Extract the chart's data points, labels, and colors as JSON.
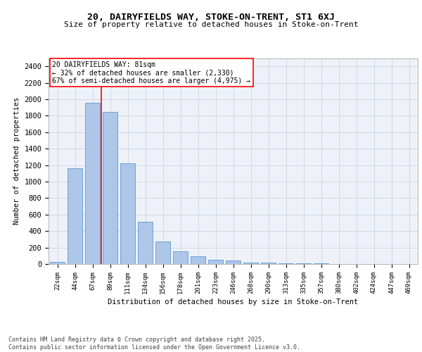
{
  "title1": "20, DAIRYFIELDS WAY, STOKE-ON-TRENT, ST1 6XJ",
  "title2": "Size of property relative to detached houses in Stoke-on-Trent",
  "xlabel": "Distribution of detached houses by size in Stoke-on-Trent",
  "ylabel": "Number of detached properties",
  "categories": [
    "22sqm",
    "44sqm",
    "67sqm",
    "89sqm",
    "111sqm",
    "134sqm",
    "156sqm",
    "178sqm",
    "201sqm",
    "223sqm",
    "246sqm",
    "268sqm",
    "290sqm",
    "313sqm",
    "335sqm",
    "357sqm",
    "380sqm",
    "402sqm",
    "424sqm",
    "447sqm",
    "469sqm"
  ],
  "values": [
    28,
    1160,
    1960,
    1850,
    1220,
    510,
    270,
    155,
    90,
    48,
    40,
    20,
    15,
    10,
    5,
    5,
    3,
    3,
    2,
    2,
    2
  ],
  "bar_color": "#aec6e8",
  "bar_edge_color": "#5b9bd5",
  "grid_color": "#d0d8e8",
  "bg_color": "#eef2f8",
  "vline_color": "red",
  "annotation_text": "20 DAIRYFIELDS WAY: 81sqm\n← 32% of detached houses are smaller (2,330)\n67% of semi-detached houses are larger (4,975) →",
  "annotation_box_color": "white",
  "annotation_box_edge": "red",
  "ylim": [
    0,
    2500
  ],
  "yticks": [
    0,
    200,
    400,
    600,
    800,
    1000,
    1200,
    1400,
    1600,
    1800,
    2000,
    2200,
    2400
  ],
  "footer1": "Contains HM Land Registry data © Crown copyright and database right 2025.",
  "footer2": "Contains public sector information licensed under the Open Government Licence v3.0."
}
